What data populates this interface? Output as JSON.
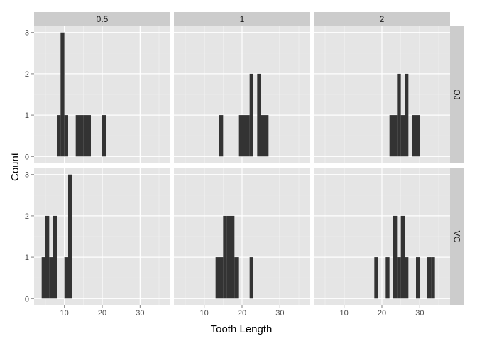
{
  "chart_data": {
    "type": "bar",
    "style": "faceted histogram",
    "xlabel": "Tooth Length",
    "ylabel": "Count",
    "xlim": [
      2,
      38
    ],
    "ylim": [
      -0.15,
      3.15
    ],
    "bin_width": 1,
    "x_ticks": [
      10,
      20,
      30
    ],
    "y_ticks": [
      0,
      1,
      2,
      3
    ],
    "bar_color": "#333333",
    "panel_background": "#e5e5e5",
    "strip_background": "#cccccc",
    "grid_color": "#ffffff",
    "grid": true,
    "column_facets": [
      "0.5",
      "1",
      "2"
    ],
    "row_facets": [
      "OJ",
      "VC"
    ],
    "panels": [
      {
        "row": "OJ",
        "col": "0.5",
        "bins": [
          [
            8.5,
            1
          ],
          [
            9.5,
            3
          ],
          [
            10.5,
            1
          ],
          [
            13.5,
            1
          ],
          [
            14.5,
            1
          ],
          [
            15.5,
            1
          ],
          [
            16.5,
            1
          ],
          [
            20.5,
            1
          ]
        ]
      },
      {
        "row": "OJ",
        "col": "1",
        "bins": [
          [
            14.5,
            1
          ],
          [
            19.5,
            1
          ],
          [
            20.5,
            1
          ],
          [
            21.5,
            1
          ],
          [
            22.5,
            2
          ],
          [
            24.5,
            2
          ],
          [
            25.5,
            1
          ],
          [
            26.5,
            1
          ]
        ]
      },
      {
        "row": "OJ",
        "col": "2",
        "bins": [
          [
            22.5,
            1
          ],
          [
            23.5,
            1
          ],
          [
            24.5,
            2
          ],
          [
            25.5,
            1
          ],
          [
            26.5,
            2
          ],
          [
            28.5,
            1
          ],
          [
            29.5,
            1
          ]
        ]
      },
      {
        "row": "VC",
        "col": "0.5",
        "bins": [
          [
            4.5,
            1
          ],
          [
            5.5,
            2
          ],
          [
            6.5,
            1
          ],
          [
            7.5,
            2
          ],
          [
            10.5,
            1
          ],
          [
            11.5,
            3
          ]
        ]
      },
      {
        "row": "VC",
        "col": "1",
        "bins": [
          [
            13.5,
            1
          ],
          [
            14.5,
            1
          ],
          [
            15.5,
            2
          ],
          [
            16.5,
            2
          ],
          [
            17.5,
            2
          ],
          [
            18.5,
            1
          ],
          [
            22.5,
            1
          ]
        ]
      },
      {
        "row": "VC",
        "col": "2",
        "bins": [
          [
            18.5,
            1
          ],
          [
            21.5,
            1
          ],
          [
            23.5,
            2
          ],
          [
            24.5,
            1
          ],
          [
            25.5,
            2
          ],
          [
            26.5,
            1
          ],
          [
            29.5,
            1
          ],
          [
            32.5,
            1
          ],
          [
            33.5,
            1
          ]
        ]
      }
    ]
  }
}
